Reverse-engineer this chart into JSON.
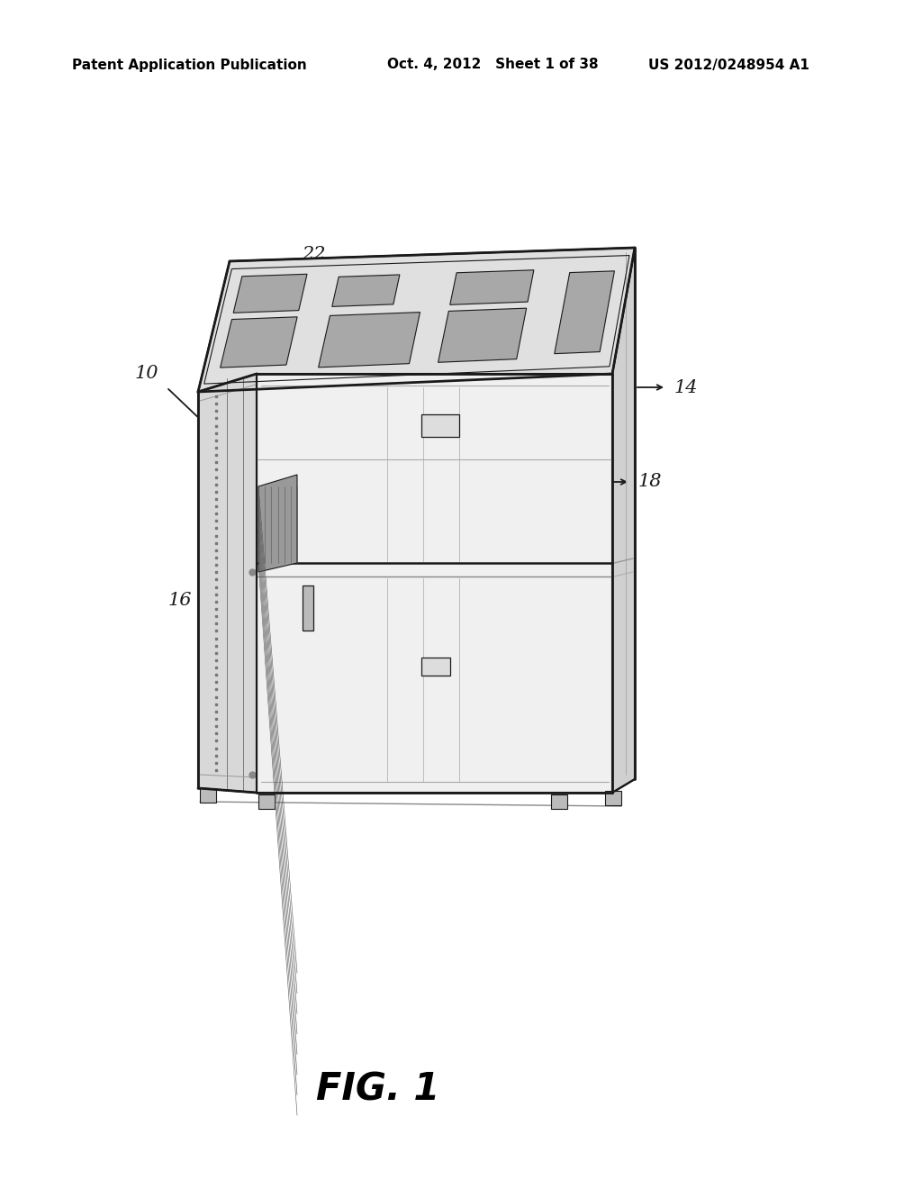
{
  "title": "FIG. 1",
  "header_left": "Patent Application Publication",
  "header_mid": "Oct. 4, 2012   Sheet 1 of 38",
  "header_right": "US 2012/0248954 A1",
  "bg_color": "#ffffff",
  "line_color": "#1a1a1a",
  "gray_light": "#e8e8e8",
  "gray_med": "#cccccc",
  "gray_dark": "#999999",
  "gray_very_light": "#f4f4f4",
  "label_color": "#1a1a1a"
}
